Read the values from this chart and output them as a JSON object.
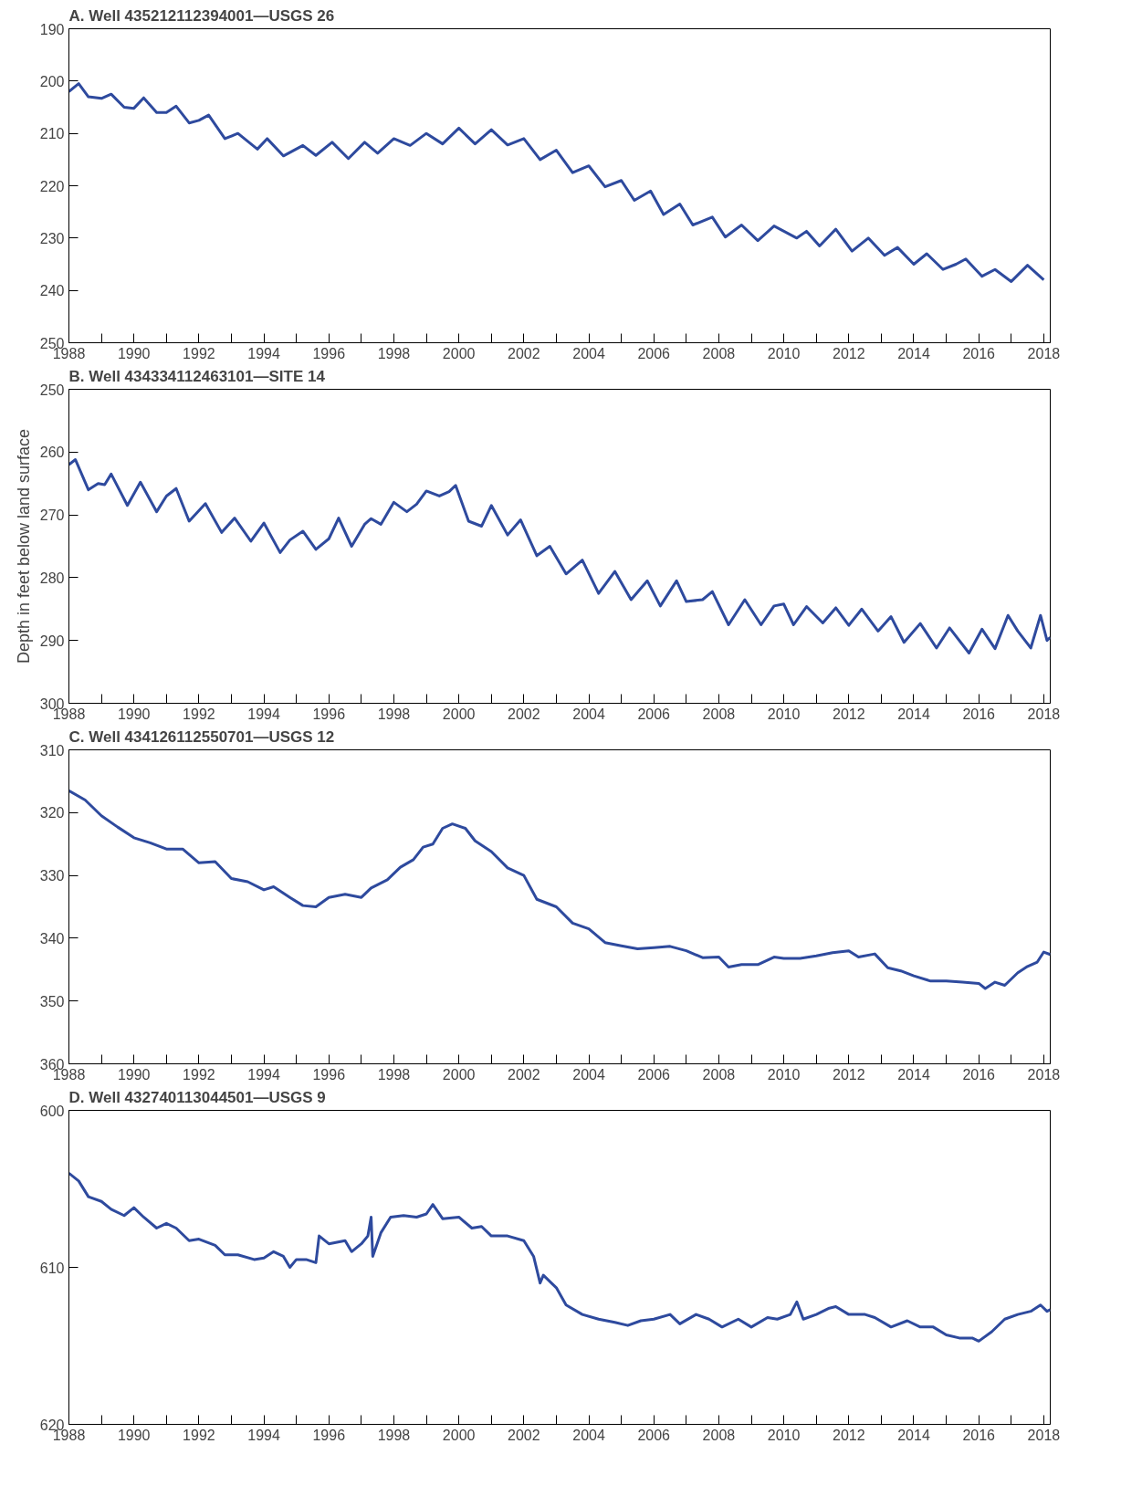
{
  "chart_data": [
    {
      "type": "line",
      "title": "A. Well 435212112394001—USGS 26",
      "ylim": [
        250,
        190
      ],
      "yticks": [
        190,
        200,
        210,
        220,
        230,
        240,
        250
      ],
      "xlim": [
        1988,
        2018.2
      ],
      "xticks": [
        1988,
        {
          "value": 1989,
          "label": null
        },
        1990,
        {
          "value": 1991,
          "label": null
        },
        1992,
        {
          "value": 1993,
          "label": null
        },
        1994,
        {
          "value": 1995,
          "label": null
        },
        1996,
        {
          "value": 1997,
          "label": null
        },
        1998,
        {
          "value": 1999,
          "label": null
        },
        2000,
        {
          "value": 2001,
          "label": null
        },
        2002,
        {
          "value": 2003,
          "label": null
        },
        2004,
        {
          "value": 2005,
          "label": null
        },
        2006,
        {
          "value": 2007,
          "label": null
        },
        2008,
        {
          "value": 2009,
          "label": null
        },
        2010,
        {
          "value": 2011,
          "label": null
        },
        2012,
        {
          "value": 2013,
          "label": null
        },
        2014,
        {
          "value": 2015,
          "label": null
        },
        2016,
        {
          "value": 2017,
          "label": null
        },
        2018
      ],
      "grid": false,
      "series": [
        {
          "color": "#2e4a9e",
          "x": [
            1988.0,
            1988.3,
            1988.6,
            1989.0,
            1989.3,
            1989.7,
            1990.0,
            1990.3,
            1990.7,
            1991.0,
            1991.3,
            1991.7,
            1992.0,
            1992.3,
            1992.8,
            1993.2,
            1993.8,
            1994.1,
            1994.6,
            1995.2,
            1995.6,
            1996.1,
            1996.6,
            1997.1,
            1997.5,
            1998.0,
            1998.5,
            1999.0,
            1999.5,
            2000.0,
            2000.5,
            2001.0,
            2001.5,
            2002.0,
            2002.5,
            2003.0,
            2003.5,
            2004.0,
            2004.5,
            2005.0,
            2005.4,
            2005.9,
            2006.3,
            2006.8,
            2007.2,
            2007.8,
            2008.2,
            2008.7,
            2009.2,
            2009.7,
            2010.4,
            2010.7,
            2011.1,
            2011.6,
            2012.1,
            2012.6,
            2013.1,
            2013.5,
            2014.0,
            2014.4,
            2014.9,
            2015.3,
            2015.6,
            2016.1,
            2016.5,
            2017.0,
            2017.5,
            2018.0
          ],
          "values": [
            202,
            200.5,
            203,
            203.3,
            202.5,
            205,
            205.2,
            203.2,
            206,
            206,
            204.8,
            208,
            207.5,
            206.5,
            211,
            210,
            213,
            211,
            214.3,
            212.3,
            214.2,
            211.7,
            214.8,
            211.7,
            213.8,
            211,
            212.3,
            210,
            212,
            209,
            212,
            209.3,
            212.2,
            211,
            215,
            213.2,
            217.5,
            216.2,
            220.2,
            219,
            222.8,
            221,
            225.5,
            223.5,
            227.5,
            226,
            229.8,
            227.5,
            230.5,
            227.7,
            230,
            228.7,
            231.5,
            228.3,
            232.5,
            230,
            233.3,
            231.8,
            235,
            233,
            236,
            235,
            234,
            237.3,
            236,
            238.3,
            235.2,
            238
          ]
        }
      ]
    },
    {
      "type": "line",
      "title": "B. Well 434334112463101—SITE 14",
      "ylabel": "Depth in feet below land surface",
      "ylim": [
        300,
        250
      ],
      "yticks": [
        250,
        260,
        270,
        280,
        290,
        300
      ],
      "xlim": [
        1988,
        2018.2
      ],
      "xticks": [
        1988,
        {
          "value": 1989,
          "label": null
        },
        1990,
        {
          "value": 1991,
          "label": null
        },
        1992,
        {
          "value": 1993,
          "label": null
        },
        1994,
        {
          "value": 1995,
          "label": null
        },
        1996,
        {
          "value": 1997,
          "label": null
        },
        1998,
        {
          "value": 1999,
          "label": null
        },
        2000,
        {
          "value": 2001,
          "label": null
        },
        2002,
        {
          "value": 2003,
          "label": null
        },
        2004,
        {
          "value": 2005,
          "label": null
        },
        2006,
        {
          "value": 2007,
          "label": null
        },
        2008,
        {
          "value": 2009,
          "label": null
        },
        2010,
        {
          "value": 2011,
          "label": null
        },
        2012,
        {
          "value": 2013,
          "label": null
        },
        2014,
        {
          "value": 2015,
          "label": null
        },
        2016,
        {
          "value": 2017,
          "label": null
        },
        2018
      ],
      "grid": false,
      "series": [
        {
          "color": "#2e4a9e",
          "x": [
            1988.0,
            1988.2,
            1988.6,
            1988.9,
            1989.1,
            1989.3,
            1989.8,
            1990.2,
            1990.7,
            1991.0,
            1991.3,
            1991.7,
            1992.2,
            1992.7,
            1993.1,
            1993.6,
            1994.0,
            1994.5,
            1994.8,
            1995.2,
            1995.6,
            1996.0,
            1996.3,
            1996.7,
            1997.1,
            1997.3,
            1997.6,
            1998.0,
            1998.4,
            1998.7,
            1999.0,
            1999.4,
            1999.7,
            1999.9,
            2000.3,
            2000.7,
            2001.0,
            2001.5,
            2001.9,
            2002.4,
            2002.8,
            2003.3,
            2003.8,
            2004.3,
            2004.8,
            2005.3,
            2005.8,
            2006.2,
            2006.7,
            2007.0,
            2007.5,
            2007.8,
            2008.3,
            2008.8,
            2009.3,
            2009.7,
            2010.0,
            2010.3,
            2010.7,
            2011.2,
            2011.6,
            2012.0,
            2012.4,
            2012.9,
            2013.3,
            2013.7,
            2014.2,
            2014.7,
            2015.1,
            2015.7,
            2016.1,
            2016.5,
            2016.9,
            2017.2,
            2017.6,
            2017.9,
            2018.1,
            2018.2
          ],
          "values": [
            262,
            261.2,
            266,
            265,
            265.2,
            263.5,
            268.5,
            264.8,
            269.5,
            267,
            265.8,
            271,
            268.2,
            272.8,
            270.5,
            274.2,
            271.3,
            276,
            274,
            272.6,
            275.5,
            273.8,
            270.5,
            275,
            271.5,
            270.6,
            271.5,
            268,
            269.5,
            268.3,
            266.2,
            267,
            266.3,
            265.3,
            271,
            271.8,
            268.5,
            273.2,
            270.8,
            276.5,
            275,
            279.4,
            277.2,
            282.5,
            279,
            283.5,
            280.5,
            284.5,
            280.5,
            283.8,
            283.5,
            282.2,
            287.5,
            283.5,
            287.5,
            284.5,
            284.2,
            287.5,
            284.6,
            287.2,
            284.8,
            287.6,
            285,
            288.5,
            286.2,
            290.3,
            287.3,
            291.2,
            288,
            292,
            288.2,
            291.3,
            286,
            288.5,
            291.2,
            286,
            290,
            289.5
          ]
        }
      ]
    },
    {
      "type": "line",
      "title": "C. Well 434126112550701—USGS 12",
      "ylim": [
        360,
        310
      ],
      "yticks": [
        310,
        320,
        330,
        340,
        350,
        360
      ],
      "xlim": [
        1988,
        2018.2
      ],
      "xticks": [
        1988,
        {
          "value": 1989,
          "label": null
        },
        1990,
        {
          "value": 1991,
          "label": null
        },
        1992,
        {
          "value": 1993,
          "label": null
        },
        1994,
        {
          "value": 1995,
          "label": null
        },
        1996,
        {
          "value": 1997,
          "label": null
        },
        1998,
        {
          "value": 1999,
          "label": null
        },
        2000,
        {
          "value": 2001,
          "label": null
        },
        2002,
        {
          "value": 2003,
          "label": null
        },
        2004,
        {
          "value": 2005,
          "label": null
        },
        2006,
        {
          "value": 2007,
          "label": null
        },
        2008,
        {
          "value": 2009,
          "label": null
        },
        2010,
        {
          "value": 2011,
          "label": null
        },
        2012,
        {
          "value": 2013,
          "label": null
        },
        2014,
        {
          "value": 2015,
          "label": null
        },
        2016,
        {
          "value": 2017,
          "label": null
        },
        2018
      ],
      "grid": false,
      "series": [
        {
          "color": "#2e4a9e",
          "x": [
            1988.0,
            1988.5,
            1989.0,
            1989.5,
            1990.0,
            1990.5,
            1991.0,
            1991.5,
            1992.0,
            1992.5,
            1993.0,
            1993.5,
            1994.0,
            1994.3,
            1994.8,
            1995.2,
            1995.6,
            1996.0,
            1996.5,
            1997.0,
            1997.3,
            1997.8,
            1998.2,
            1998.6,
            1998.9,
            1999.2,
            1999.5,
            1999.8,
            2000.2,
            2000.5,
            2001.0,
            2001.5,
            2002.0,
            2002.4,
            2003.0,
            2003.5,
            2004.0,
            2004.5,
            2005.0,
            2005.5,
            2006.0,
            2006.5,
            2007.0,
            2007.5,
            2008.0,
            2008.3,
            2008.7,
            2009.2,
            2009.7,
            2010.0,
            2010.5,
            2011.0,
            2011.5,
            2012.0,
            2012.3,
            2012.8,
            2013.2,
            2013.6,
            2014.0,
            2014.5,
            2015.0,
            2015.5,
            2016.0,
            2016.2,
            2016.5,
            2016.8,
            2017.2,
            2017.5,
            2017.8,
            2018.0,
            2018.2
          ],
          "values": [
            316.5,
            318,
            320.5,
            322.3,
            324,
            324.8,
            325.8,
            325.8,
            328,
            327.8,
            330.5,
            331,
            332.3,
            331.8,
            333.5,
            334.8,
            335,
            333.5,
            333,
            333.5,
            332,
            330.7,
            328.7,
            327.5,
            325.5,
            325,
            322.5,
            321.8,
            322.5,
            324.5,
            326.2,
            328.8,
            330,
            333.8,
            335,
            337.6,
            338.5,
            340.7,
            341.2,
            341.7,
            341.5,
            341.3,
            342,
            343.1,
            343,
            344.6,
            344.2,
            344.2,
            343,
            343.2,
            343.2,
            342.8,
            342.3,
            342,
            343,
            342.5,
            344.7,
            345.2,
            346,
            346.8,
            346.8,
            347,
            347.2,
            348,
            347,
            347.5,
            345.5,
            344.5,
            343.8,
            342.2,
            342.6
          ]
        }
      ]
    },
    {
      "type": "line",
      "title": "D. Well 432740113044501—USGS 9",
      "ylim": [
        620,
        600
      ],
      "yticks": [
        600,
        610,
        620
      ],
      "xlim": [
        1988,
        2018.2
      ],
      "xticks": [
        1988,
        {
          "value": 1989,
          "label": null
        },
        1990,
        {
          "value": 1991,
          "label": null
        },
        1992,
        {
          "value": 1993,
          "label": null
        },
        1994,
        {
          "value": 1995,
          "label": null
        },
        1996,
        {
          "value": 1997,
          "label": null
        },
        1998,
        {
          "value": 1999,
          "label": null
        },
        2000,
        {
          "value": 2001,
          "label": null
        },
        2002,
        {
          "value": 2003,
          "label": null
        },
        2004,
        {
          "value": 2005,
          "label": null
        },
        2006,
        {
          "value": 2007,
          "label": null
        },
        2008,
        {
          "value": 2009,
          "label": null
        },
        2010,
        {
          "value": 2011,
          "label": null
        },
        2012,
        {
          "value": 2013,
          "label": null
        },
        2014,
        {
          "value": 2015,
          "label": null
        },
        2016,
        {
          "value": 2017,
          "label": null
        },
        2018
      ],
      "grid": false,
      "series": [
        {
          "color": "#2e4a9e",
          "x": [
            1988.0,
            1988.3,
            1988.6,
            1989.0,
            1989.3,
            1989.7,
            1990.0,
            1990.3,
            1990.7,
            1991.0,
            1991.3,
            1991.7,
            1992.0,
            1992.5,
            1992.8,
            1993.2,
            1993.7,
            1994.0,
            1994.3,
            1994.6,
            1994.8,
            1995.0,
            1995.3,
            1995.6,
            1995.7,
            1996.0,
            1996.5,
            1996.7,
            1997.0,
            1997.2,
            1997.3,
            1997.35,
            1997.6,
            1997.9,
            1998.3,
            1998.7,
            1999.0,
            1999.2,
            1999.5,
            2000.0,
            2000.4,
            2000.7,
            2001.0,
            2001.5,
            2002.0,
            2002.3,
            2002.5,
            2002.6,
            2003.0,
            2003.3,
            2003.8,
            2004.3,
            2004.8,
            2005.2,
            2005.6,
            2006.0,
            2006.5,
            2006.8,
            2007.3,
            2007.7,
            2008.1,
            2008.6,
            2009.0,
            2009.5,
            2009.8,
            2010.2,
            2010.4,
            2010.6,
            2011.0,
            2011.4,
            2011.6,
            2012.0,
            2012.5,
            2012.8,
            2013.3,
            2013.8,
            2014.2,
            2014.6,
            2015.0,
            2015.4,
            2015.8,
            2016.0,
            2016.4,
            2016.8,
            2017.2,
            2017.6,
            2017.9,
            2018.1,
            2018.2
          ],
          "values": [
            604,
            604.5,
            605.5,
            605.8,
            606.3,
            606.7,
            606.2,
            606.8,
            607.5,
            607.2,
            607.5,
            608.3,
            608.2,
            608.6,
            609.2,
            609.2,
            609.5,
            609.4,
            609,
            609.3,
            610,
            609.5,
            609.5,
            609.7,
            608,
            608.5,
            608.3,
            609,
            608.5,
            608,
            606.8,
            609.3,
            607.8,
            606.8,
            606.7,
            606.8,
            606.6,
            606,
            606.9,
            606.8,
            607.5,
            607.4,
            608,
            608,
            608.3,
            609.3,
            611,
            610.5,
            611.3,
            612.4,
            613,
            613.3,
            613.5,
            613.7,
            613.4,
            613.3,
            613,
            613.6,
            613,
            613.3,
            613.8,
            613.3,
            613.8,
            613.2,
            613.3,
            613,
            612.2,
            613.3,
            613,
            612.6,
            612.5,
            613,
            613,
            613.2,
            613.8,
            613.4,
            613.8,
            613.8,
            614.3,
            614.5,
            614.5,
            614.7,
            614.1,
            613.3,
            613,
            612.8,
            612.4,
            612.8,
            612.7
          ]
        }
      ]
    }
  ]
}
